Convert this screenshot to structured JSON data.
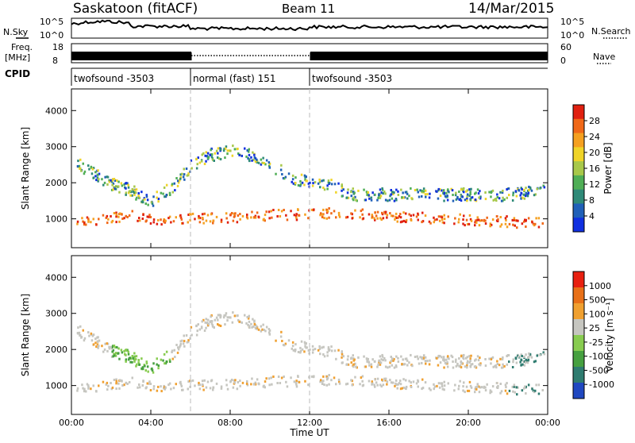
{
  "header": {
    "station": "Saskatoon (fitACF)",
    "beam": "Beam 11",
    "date": "14/Mar/2015"
  },
  "panels": {
    "nsky_label": "N.Sky",
    "freq_label_top": "Freq.",
    "freq_label_unit": "[MHz]",
    "cpid_label": "CPID",
    "nsearch_label": "N.Search",
    "nave_label": "Nave",
    "nsky_ticks": [
      "10^5",
      "10^0"
    ],
    "nsearch_ticks": [
      "10^5",
      "10^0"
    ],
    "freq_ticks": [
      "18",
      "8"
    ],
    "nave_ticks": [
      "60",
      "0"
    ]
  },
  "cpid_segments": [
    {
      "label": "twofsound -3503",
      "start": 0,
      "end": 6
    },
    {
      "label": "normal (fast) 151",
      "start": 6,
      "end": 12
    },
    {
      "label": "twofsound -3503",
      "start": 12,
      "end": 24
    }
  ],
  "colors": {
    "power": [
      "#1030e0",
      "#2060b8",
      "#2f8a78",
      "#4fae56",
      "#a8c84a",
      "#f0d428",
      "#f5a020",
      "#f06818",
      "#e02010"
    ],
    "velocity": [
      "#2048c0",
      "#2f7c70",
      "#46a040",
      "#88cc50",
      "#c6c6c0",
      "#f0a030",
      "#e87018",
      "#e82010"
    ]
  },
  "chart_data": [
    {
      "type": "heatmap",
      "ylabel": "Slant Range [km]",
      "xlim": [
        0,
        24
      ],
      "ylim": [
        200,
        4600
      ],
      "yticks": [
        "1000",
        "2000",
        "3000",
        "4000"
      ],
      "colorbar": {
        "label": "Power [dB]",
        "ticks": [
          "28",
          "24",
          "20",
          "16",
          "12",
          "8",
          "4"
        ]
      },
      "series": [
        {
          "x": [
            0.2,
            1.0,
            2.0,
            3.0,
            4.0,
            5.0,
            6.0,
            7.0,
            8.0,
            9.0,
            10.0,
            11.0,
            12.0,
            13.0,
            14.0,
            16.0,
            18.0,
            20.0,
            22.0,
            23.8
          ],
          "y": [
            2600,
            2300,
            2000,
            1800,
            1500,
            1900,
            2500,
            2800,
            2900,
            2800,
            2500,
            2200,
            2000,
            2000,
            1700,
            1700,
            1700,
            1700,
            1700,
            1800
          ]
        },
        {
          "x": [
            0.2,
            1.0,
            2.0,
            3.0,
            4.0,
            13.5,
            16.0,
            18.0,
            20.0,
            22.0,
            23.8
          ],
          "y": [
            1000,
            1000,
            1050,
            1100,
            1000,
            1200,
            1100,
            1050,
            1000,
            950,
            900
          ]
        }
      ]
    },
    {
      "type": "heatmap",
      "ylabel": "Slant Range [km]",
      "xlabel": "Time UT",
      "xlim": [
        0,
        24
      ],
      "ylim": [
        200,
        4600
      ],
      "yticks": [
        "1000",
        "2000",
        "3000",
        "4000"
      ],
      "xticks": [
        "00:00",
        "04:00",
        "08:00",
        "12:00",
        "16:00",
        "20:00",
        "00:00"
      ],
      "colorbar": {
        "label": "Velocity [m s⁻¹]",
        "ticks": [
          "1000",
          "500",
          "100",
          "25",
          "-25",
          "-100",
          "-500",
          "-1000"
        ]
      }
    }
  ]
}
